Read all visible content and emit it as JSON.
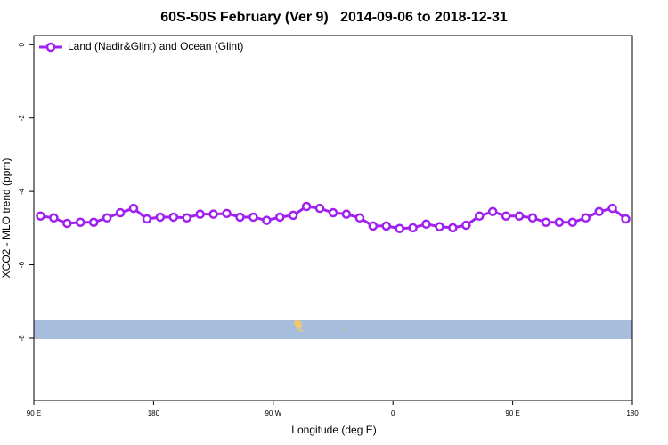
{
  "chart_data": {
    "type": "line",
    "title": "60S-50S February (Ver 9)   2014-09-06 to 2018-12-31",
    "x_label": "Longitude (deg E)",
    "y_label": "XCO2 - MLO trend (ppm)",
    "x": [
      95,
      105,
      115,
      125,
      135,
      145,
      155,
      165,
      175,
      185,
      195,
      205,
      215,
      225,
      235,
      245,
      255,
      265,
      275,
      285,
      295,
      305,
      315,
      325,
      335,
      345,
      355,
      365,
      375,
      385,
      395,
      405,
      415,
      425,
      435,
      445,
      455,
      465,
      475,
      485,
      495,
      505,
      515,
      525,
      535
    ],
    "series": [
      {
        "name": "Land (Nadir&Glint) and Ocean (Glint)",
        "color": "#a020f0",
        "values": [
          -4.67,
          -4.72,
          -4.87,
          -4.84,
          -4.84,
          -4.72,
          -4.58,
          -4.46,
          -4.75,
          -4.7,
          -4.7,
          -4.72,
          -4.62,
          -4.62,
          -4.6,
          -4.7,
          -4.7,
          -4.79,
          -4.7,
          -4.65,
          -4.41,
          -4.46,
          -4.58,
          -4.62,
          -4.72,
          -4.94,
          -4.94,
          -5.01,
          -4.99,
          -4.89,
          -4.96,
          -4.99,
          -4.92,
          -4.67,
          -4.55,
          -4.67,
          -4.67,
          -4.72,
          -4.84,
          -4.84,
          -4.84,
          -4.72,
          -4.55,
          -4.46,
          -4.75
        ]
      }
    ],
    "xlim": [
      90,
      540
    ],
    "xticks": [
      {
        "value": 90,
        "label": "90 E"
      },
      180,
      {
        "value": 270,
        "label": "90 W"
      },
      {
        "value": 360,
        "label": "0"
      },
      {
        "value": 450,
        "label": "90 E"
      },
      {
        "value": 540,
        "label": "180"
      }
    ],
    "ylim": [
      -9.7,
      0.25
    ],
    "yticks": [
      0,
      -2,
      -4,
      -6,
      -8
    ],
    "grid": false,
    "legend": "top-left"
  }
}
